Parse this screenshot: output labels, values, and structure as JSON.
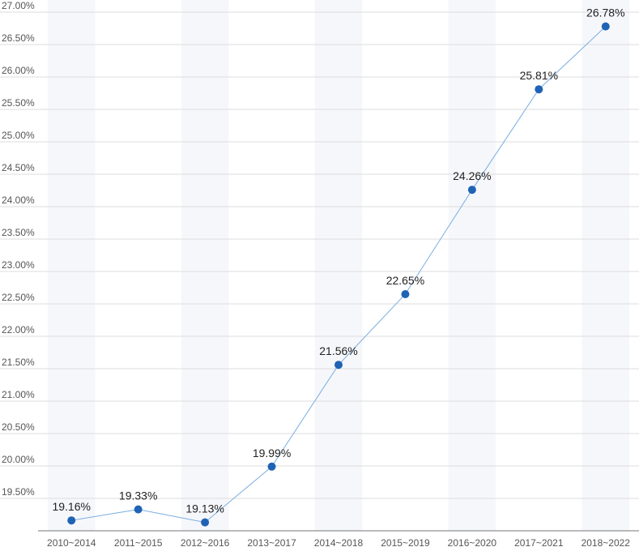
{
  "chart_data": {
    "type": "line",
    "categories": [
      "2010~2014",
      "2011~2015",
      "2012~2016",
      "2013~2017",
      "2014~2018",
      "2015~2019",
      "2016~2020",
      "2017~2021",
      "2018~2022"
    ],
    "series": [
      {
        "values": [
          19.16,
          19.33,
          19.13,
          19.99,
          21.56,
          22.65,
          24.26,
          25.81,
          26.78
        ]
      }
    ],
    "data_labels": [
      "19.16%",
      "19.33%",
      "19.13%",
      "19.99%",
      "21.56%",
      "22.65%",
      "24.26%",
      "25.81%",
      "26.78%"
    ],
    "yticks": [
      19.5,
      20.0,
      20.5,
      21.0,
      21.5,
      22.0,
      22.5,
      23.0,
      23.5,
      24.0,
      24.5,
      25.0,
      25.5,
      26.0,
      26.5,
      27.0
    ],
    "ytick_labels": [
      "19.50%",
      "20.00%",
      "20.50%",
      "21.00%",
      "21.50%",
      "22.00%",
      "22.50%",
      "23.00%",
      "23.50%",
      "24.00%",
      "24.50%",
      "25.00%",
      "25.50%",
      "26.00%",
      "26.50%",
      "27.00%"
    ],
    "ylim": [
      19.0,
      27.0
    ],
    "grid": true,
    "colors": {
      "line": "#7aaee0",
      "point": "#1f63b5",
      "grid": "#dddddd",
      "band": "#f6f7fb",
      "axis": "#777777"
    }
  }
}
